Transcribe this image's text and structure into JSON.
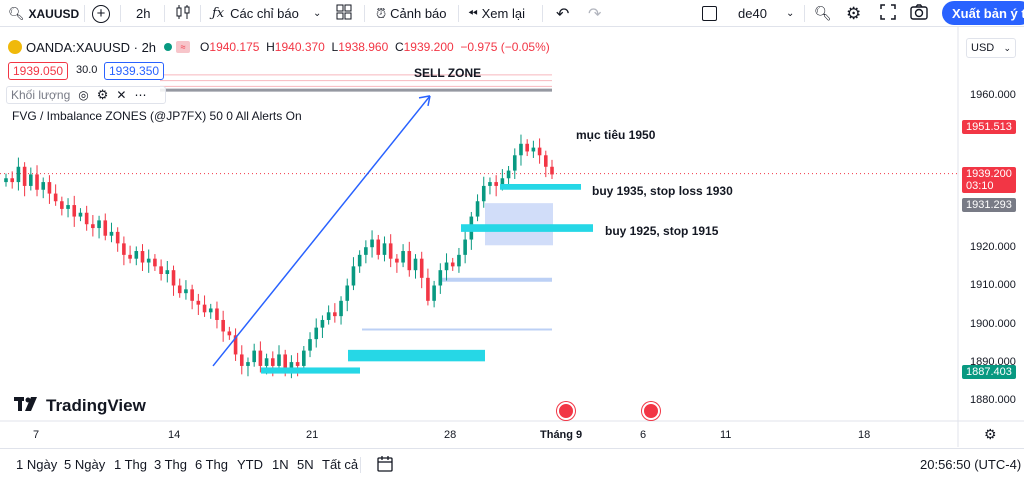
{
  "toolbar": {
    "symbol": "XAUUSD",
    "interval": "2h",
    "indicators": "Các chỉ báo",
    "alerts": "Cảnh báo",
    "replay": "Xem lại",
    "layout_name": "de40",
    "export": "Xuất bản ý tư"
  },
  "legend": {
    "title": "OANDA:XAUUSD · 2h",
    "o_label": "O",
    "o_value": "1940.175",
    "h_label": "H",
    "h_value": "1940.370",
    "l_label": "L",
    "l_value": "1938.960",
    "c_label": "C",
    "c_value": "1939.200",
    "change": "−0.975 (−0.05%)",
    "bid": "1939.050",
    "spread": "30.0",
    "ask": "1939.350",
    "volume_label": "Khối lượng",
    "indicator": "FVG / Imbalance ZONES (@JP7FX) 50 0 All Alerts On"
  },
  "annotations": {
    "sell_zone": "SELL ZONE",
    "target": "mục tiêu 1950",
    "buy1": "buy 1935, stop loss 1930",
    "buy2": "buy 1925, stop 1915"
  },
  "price_axis": {
    "currency": "USD",
    "ticks": [
      "1960.000",
      "1950.000",
      "1940.000",
      "1930.000",
      "1920.000",
      "1910.000",
      "1900.000",
      "1890.000",
      "1880.000"
    ],
    "tag_high": "1951.513",
    "tag_last": "1939.200",
    "tag_countdown": "03:10",
    "tag_mid": "1931.293",
    "tag_low": "1887.403"
  },
  "time_axis": {
    "ticks": [
      "7",
      "14",
      "21",
      "28",
      "Tháng 9",
      "6",
      "11",
      "18"
    ]
  },
  "brand": "TradingView",
  "bottom": {
    "ranges": [
      "1 Ngày",
      "5 Ngày",
      "1 Thg",
      "3 Thg",
      "6 Thg",
      "YTD",
      "1N",
      "5N",
      "Tất cả"
    ],
    "clock": "20:56:50 (UTC-4)"
  },
  "colors": {
    "up": "#089981",
    "down": "#f23645",
    "fvg": "#26d7e6",
    "fvg_light": "#bcd0f5",
    "arrow": "#2962ff",
    "accent": "#2962ff"
  },
  "chart_data": {
    "type": "candlestick",
    "symbol": "OANDA:XAUUSD",
    "interval": "2h",
    "ylim": [
      1876,
      1967
    ],
    "last_close": 1939.2,
    "labels": [
      "1951.513",
      "1939.200",
      "1931.293",
      "1887.403"
    ],
    "zones": [
      {
        "label": "SELL ZONE",
        "low": 1961,
        "high": 1965
      },
      {
        "label": "buy 1935, stop loss 1930",
        "low": 1935,
        "high": 1936.5
      },
      {
        "label": "buy 1925, stop 1915",
        "low": 1924,
        "high": 1926
      },
      {
        "label": "FVG",
        "low": 1890.2,
        "high": 1893.2
      },
      {
        "label": "FVG",
        "low": 1887,
        "high": 1888.6
      }
    ],
    "target_label": "mục tiêu 1950",
    "trend_close": [
      1938,
      1937,
      1941,
      1936,
      1939,
      1935,
      1937,
      1934,
      1932,
      1930,
      1931,
      1928,
      1929,
      1926,
      1925,
      1927,
      1923,
      1924,
      1921,
      1918,
      1917,
      1919,
      1916,
      1917,
      1915,
      1913,
      1914,
      1910,
      1908,
      1909,
      1906,
      1905,
      1903,
      1904,
      1901,
      1898,
      1897,
      1892,
      1889,
      1890,
      1893,
      1889,
      1891,
      1889,
      1892,
      1888,
      1890,
      1889,
      1893,
      1896,
      1899,
      1901,
      1903,
      1902,
      1906,
      1910,
      1915,
      1918,
      1920,
      1922,
      1918,
      1921,
      1917,
      1916,
      1919,
      1914,
      1917,
      1912,
      1906,
      1910,
      1914,
      1916,
      1915,
      1918,
      1922,
      1928,
      1932,
      1936,
      1937,
      1936,
      1938,
      1940,
      1944,
      1947,
      1945,
      1946,
      1944,
      1941,
      1939
    ]
  }
}
